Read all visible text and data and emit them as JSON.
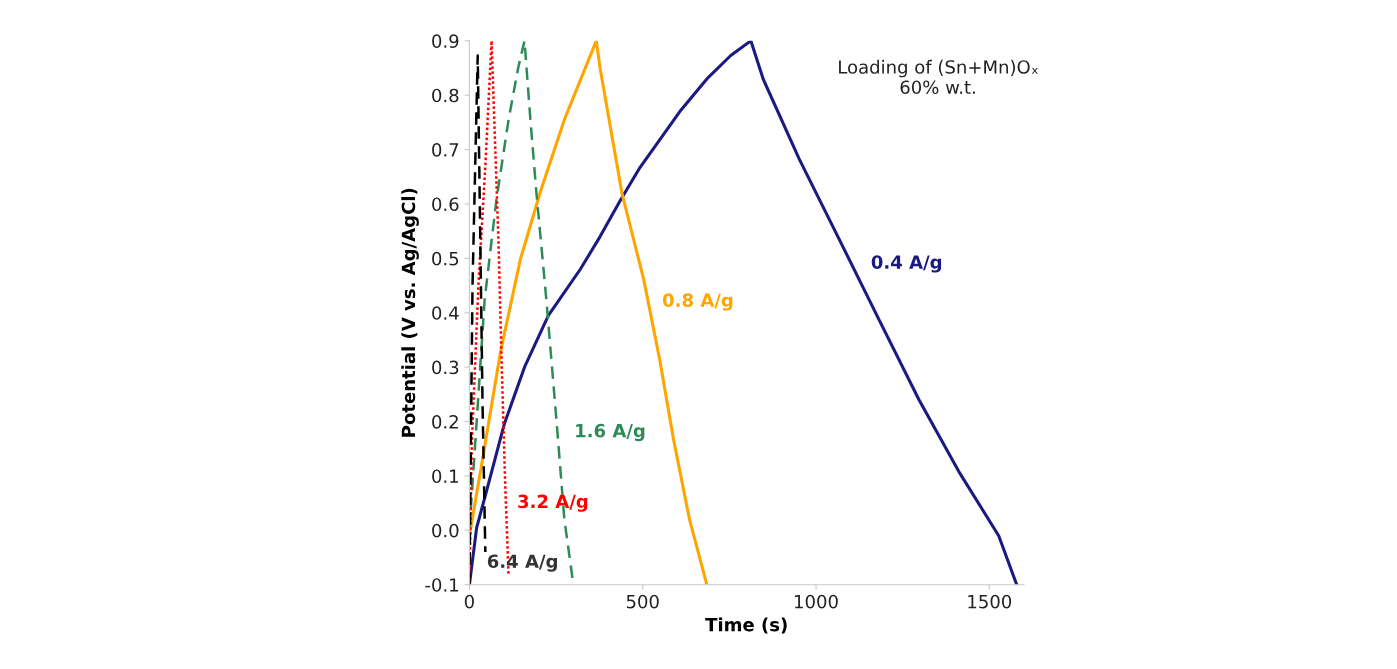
{
  "chart_data": {
    "type": "line",
    "xlabel": "Time (s)",
    "ylabel": "Potential (V vs. Ag/AgCl)",
    "xlim": [
      0,
      1600
    ],
    "xticks": [
      0,
      500,
      1000,
      1500
    ],
    "ylim": [
      -0.1,
      0.9
    ],
    "yticks": [
      -0.1,
      {
        "value": 0,
        "label": "0.0"
      },
      0.1,
      0.2,
      0.3,
      0.4,
      0.5,
      0.6,
      0.7,
      0.8,
      0.9
    ],
    "grid": false,
    "legend": false,
    "marker": "none",
    "series": [
      {
        "name": "0.4 A/g",
        "color": "#1a1a80",
        "line_style": "solid",
        "x": [
          0,
          21,
          49,
          101,
          159,
          228,
          320,
          377,
          434,
          492,
          607,
          688,
          754,
          812,
          848,
          952,
          1067,
          1182,
          1297,
          1412,
          1527,
          1579
        ],
        "values": [
          -0.1,
          0.005,
          0.071,
          0.196,
          0.3,
          0.395,
          0.48,
          0.54,
          0.605,
          0.667,
          0.77,
          0.832,
          0.873,
          0.9,
          0.829,
          0.682,
          0.535,
          0.387,
          0.24,
          0.108,
          -0.01,
          -0.1
        ]
      },
      {
        "name": "0.8 A/g",
        "color": "#ffa500",
        "line_style": "solid",
        "x": [
          0,
          32,
          90,
          147,
          205,
          274,
          366,
          377,
          440,
          503,
          549,
          589,
          635,
          685
        ],
        "values": [
          -0.01,
          0.108,
          0.329,
          0.498,
          0.623,
          0.755,
          0.9,
          0.85,
          0.62,
          0.461,
          0.314,
          0.167,
          0.02,
          -0.1
        ]
      },
      {
        "name": "1.6 A/g",
        "color": "#2e8b57",
        "line_style": "dashed",
        "x": [
          0,
          21,
          44,
          78,
          113,
          141,
          159,
          176,
          193,
          222,
          251,
          274,
          300
        ],
        "values": [
          0.0,
          0.2,
          0.424,
          0.608,
          0.755,
          0.851,
          0.9,
          0.755,
          0.623,
          0.424,
          0.204,
          0.02,
          -0.1
        ]
      },
      {
        "name": "3.2 A/g",
        "color": "#ff0000",
        "line_style": "dotted",
        "x": [
          0,
          7,
          26,
          46,
          64,
          72,
          84,
          93,
          103,
          113
        ],
        "values": [
          -0.1,
          0.16,
          0.45,
          0.67,
          0.9,
          0.75,
          0.53,
          0.31,
          0.09,
          -0.083
        ]
      },
      {
        "name": "6.4 A/g",
        "color": "#000000",
        "line_style": "dashed",
        "x": [
          0,
          9,
          24,
          30,
          38,
          46
        ],
        "values": [
          -0.1,
          0.45,
          0.873,
          0.6,
          0.23,
          -0.04
        ]
      }
    ],
    "annotations": [
      "Loading of (Sn+Mn)Oₓ\n60% w.t."
    ]
  }
}
